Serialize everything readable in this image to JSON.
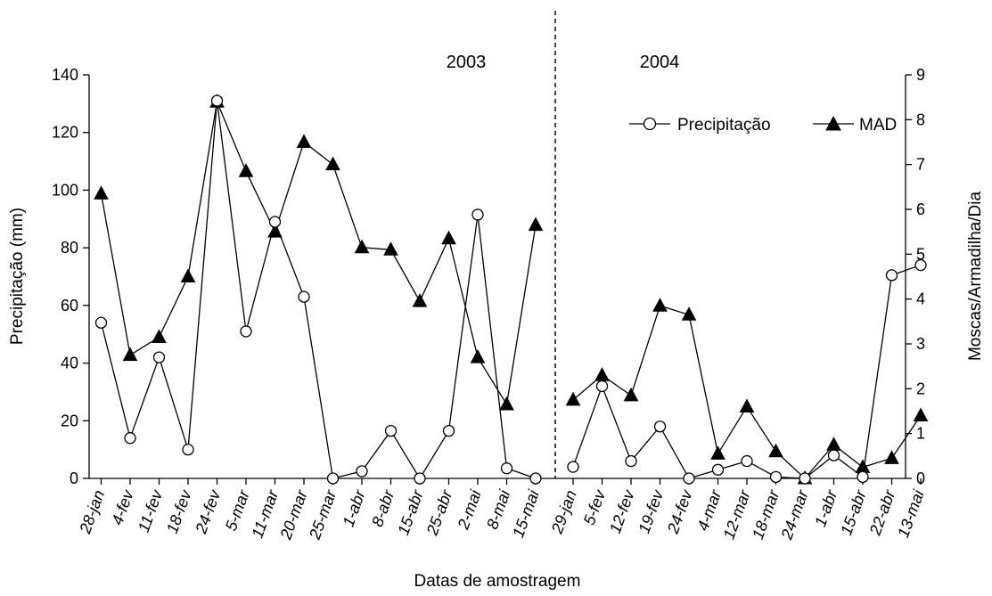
{
  "chart_data": {
    "type": "line",
    "xlabel": "Datas de amostragem",
    "ylabel_left": "Precipitação (mm)",
    "ylabel_right": "Moscas/Armadilha/Dia",
    "ylim_left": [
      0,
      140
    ],
    "ylim_right": [
      0,
      9
    ],
    "yticks_left": [
      "0",
      "20",
      "40",
      "60",
      "80",
      "100",
      "120",
      "140"
    ],
    "yticks_right": [
      "0",
      "1",
      "2",
      "3",
      "4",
      "5",
      "6",
      "7",
      "8",
      "9"
    ],
    "grid": false,
    "legend_position": "top-right",
    "periods": [
      {
        "year": "2003",
        "categories": [
          "28-jan",
          "4-fev",
          "11-fev",
          "18-fev",
          "24-fev",
          "5-mar",
          "11-mar",
          "20-mar",
          "25-mar",
          "1-abr",
          "8-abr",
          "15-abr",
          "25-abr",
          "2-mai",
          "8-mai",
          "15-mai"
        ],
        "precipitacao": [
          54,
          14,
          42,
          10,
          131,
          51,
          89,
          63,
          0,
          2.5,
          16.5,
          0,
          16.5,
          91.5,
          3.5,
          0
        ],
        "mad": [
          6.35,
          2.75,
          3.15,
          4.5,
          8.4,
          6.85,
          5.5,
          7.5,
          7.0,
          5.15,
          5.1,
          3.95,
          5.35,
          2.7,
          1.65,
          5.65
        ]
      },
      {
        "year": "2004",
        "categories": [
          "29-jan",
          "5-fev",
          "12-fev",
          "19-fev",
          "24-fev",
          "4-mar",
          "12-mar",
          "18-mar",
          "24-mar",
          "1-abr",
          "15-abr",
          "22-abr",
          "13-mai"
        ],
        "precipitacao": [
          4,
          32,
          6,
          18,
          0,
          3,
          6,
          0.5,
          0,
          8,
          0.5,
          70.5,
          74
        ],
        "mad": [
          1.75,
          2.3,
          1.85,
          3.85,
          3.65,
          0.55,
          1.6,
          0.6,
          0,
          0.75,
          0.25,
          0.45,
          1.4
        ]
      }
    ],
    "series": [
      {
        "name": "Precipitação",
        "axis": "left",
        "marker": "open-circle",
        "color": "#000000"
      },
      {
        "name": "MAD",
        "axis": "right",
        "marker": "filled-triangle",
        "color": "#000000"
      }
    ]
  }
}
